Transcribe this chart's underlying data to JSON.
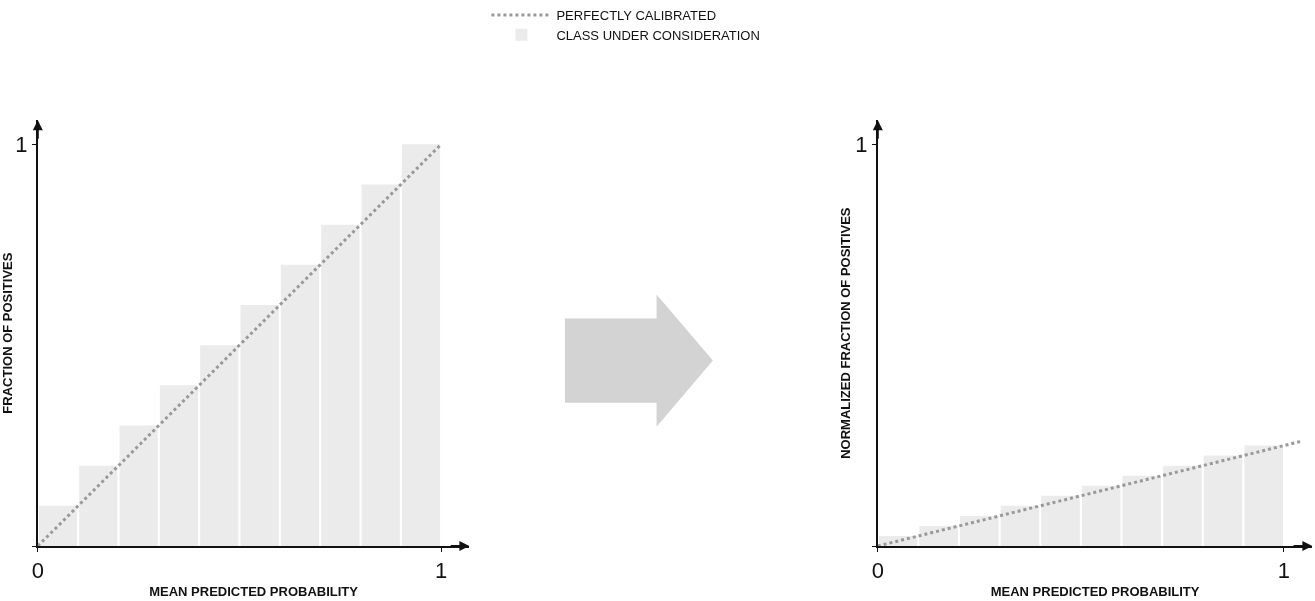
{
  "chart_data": [
    {
      "type": "bar",
      "xlabel": "MEAN PREDICTED PROBABILITY",
      "ylabel": "FRACTION OF POSITIVES",
      "xlim": [
        0,
        1.07
      ],
      "ylim": [
        0,
        1.06
      ],
      "xticks": [
        0,
        1
      ],
      "yticks": [
        {
          "value": 0,
          "label": null
        },
        1
      ],
      "legend": "top",
      "series": [
        {
          "name": "PERFECTLY CALIBRATED",
          "type": "line",
          "color": "#999999",
          "line_style": "dotted",
          "x": [
            0,
            1
          ],
          "values": [
            0,
            1
          ]
        },
        {
          "name": "CLASS UNDER CONSIDERATION",
          "color": "#ebebeb",
          "x": [
            0.05,
            0.15,
            0.25,
            0.35,
            0.45,
            0.55,
            0.65,
            0.75,
            0.85,
            0.95
          ],
          "values": [
            0.1,
            0.2,
            0.3,
            0.4,
            0.5,
            0.6,
            0.7,
            0.8,
            0.9,
            1.0
          ]
        }
      ]
    },
    {
      "type": "bar",
      "xlabel": "MEAN PREDICTED PROBABILITY",
      "ylabel": "NORMALIZED FRACTION OF POSITIVES",
      "xlim": [
        0,
        1.07
      ],
      "ylim": [
        0,
        1.06
      ],
      "xticks": [
        0,
        1
      ],
      "yticks": [
        {
          "value": 0,
          "label": null
        },
        1
      ],
      "series": [
        {
          "type": "line",
          "color": "#999999",
          "line_style": "dotted",
          "x": [
            0,
            1.04
          ],
          "values": [
            0,
            0.26
          ]
        },
        {
          "color": "#ebebeb",
          "x": [
            0.05,
            0.15,
            0.25,
            0.35,
            0.45,
            0.55,
            0.65,
            0.75,
            0.85,
            0.95
          ],
          "values": [
            0.025,
            0.05,
            0.075,
            0.1,
            0.125,
            0.15,
            0.175,
            0.2,
            0.225,
            0.25
          ]
        }
      ]
    }
  ]
}
